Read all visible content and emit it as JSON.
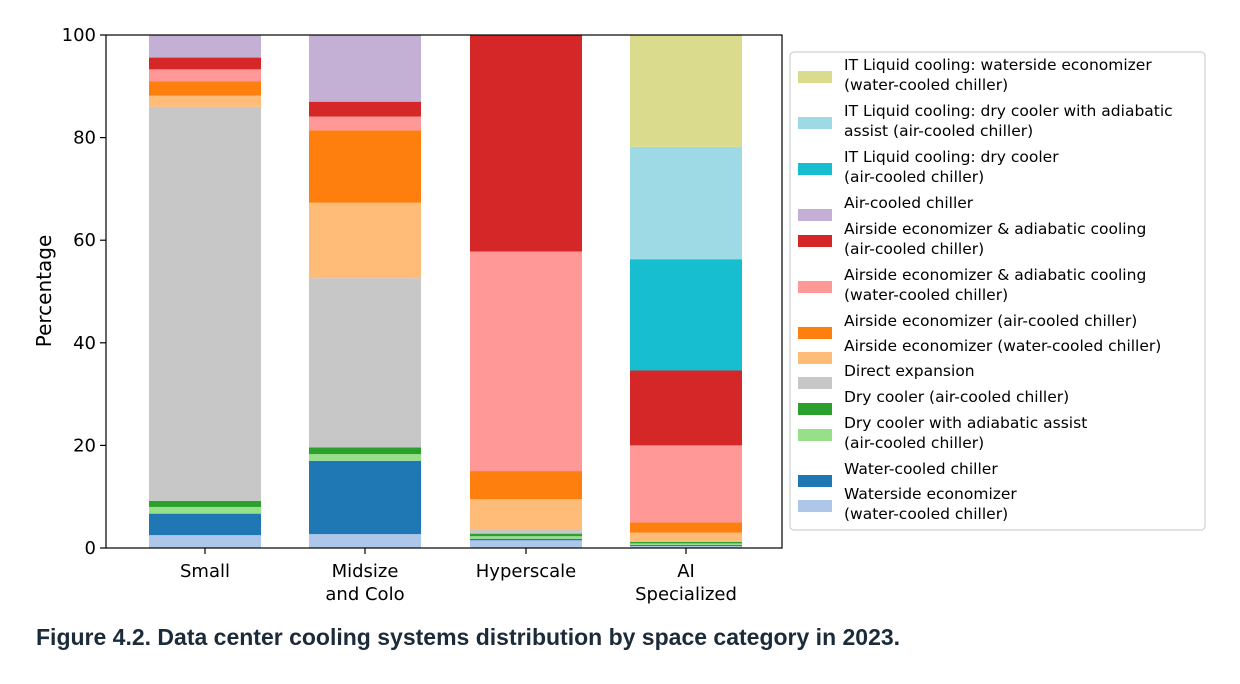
{
  "caption": "Figure 4.2.  Data center cooling systems distribution by space category in 2023.",
  "chart_data": {
    "type": "bar",
    "stacked": true,
    "ylabel": "Percentage",
    "xlabel": "",
    "ylim": [
      0,
      100
    ],
    "yticks": [
      0,
      20,
      40,
      60,
      80,
      100
    ],
    "grid": false,
    "legend_position": "right",
    "categories": [
      [
        "Small"
      ],
      [
        "Midsize",
        "and Colo"
      ],
      [
        "Hyperscale"
      ],
      [
        "AI",
        "Specialized"
      ]
    ],
    "series": [
      {
        "name": "Waterside economizer\n(water-cooled chiller)",
        "color": "#aec7e8",
        "values": [
          2.5,
          2.7,
          1.5,
          0.4
        ]
      },
      {
        "name": "Water-cooled chiller",
        "color": "#1f77b4",
        "values": [
          4.2,
          14.3,
          0.3,
          0.2
        ]
      },
      {
        "name": "Dry cooler with adiabatic assist\n(air-cooled chiller)",
        "color": "#98df8a",
        "values": [
          1.3,
          1.3,
          0.5,
          0.3
        ]
      },
      {
        "name": "Dry cooler (air-cooled chiller)",
        "color": "#2ca02c",
        "values": [
          1.2,
          1.3,
          0.5,
          0.3
        ]
      },
      {
        "name": "Direct expansion",
        "color": "#c7c7c7",
        "values": [
          76.8,
          33.0,
          0.8,
          0.0
        ]
      },
      {
        "name": "Airside economizer (water-cooled chiller)",
        "color": "#ffbb78",
        "values": [
          2.2,
          14.7,
          5.9,
          1.8
        ]
      },
      {
        "name": "Airside economizer (air-cooled chiller)",
        "color": "#ff7f0e",
        "values": [
          2.8,
          14.1,
          5.5,
          2.0
        ]
      },
      {
        "name": "Airside economizer & adiabatic cooling\n(water-cooled chiller)",
        "color": "#ff9896",
        "values": [
          2.3,
          2.7,
          42.8,
          15.0
        ]
      },
      {
        "name": "Airside economizer & adiabatic cooling\n(air-cooled chiller)",
        "color": "#d62728",
        "values": [
          2.3,
          2.9,
          42.2,
          14.6
        ]
      },
      {
        "name": "Air-cooled chiller",
        "color": "#c5b0d5",
        "values": [
          4.4,
          13.0,
          0.0,
          0.0
        ]
      },
      {
        "name": "IT Liquid cooling: dry cooler\n(air-cooled chiller)",
        "color": "#17becf",
        "values": [
          0.0,
          0.0,
          0.0,
          21.7
        ]
      },
      {
        "name": "IT Liquid cooling: dry cooler with adiabatic\nassist (air-cooled chiller)",
        "color": "#9edae5",
        "values": [
          0.0,
          0.0,
          0.0,
          21.9
        ]
      },
      {
        "name": "IT Liquid cooling: waterside economizer\n(water-cooled chiller)",
        "color": "#dbdb8d",
        "values": [
          0.0,
          0.0,
          0.0,
          21.8
        ]
      }
    ]
  }
}
